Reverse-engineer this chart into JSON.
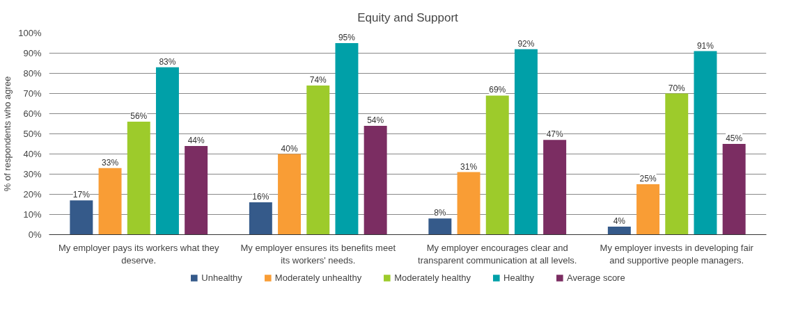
{
  "chart_data": {
    "type": "bar",
    "title": "Equity and Support",
    "ylabel": "% of respondents who agree",
    "categories": [
      "My employer pays its workers what they deserve.",
      "My employer ensures its benefits meet its workers' needs.",
      "My employer encourages clear and transparent communication at all levels.",
      "My employer invests in developing fair and supportive people managers."
    ],
    "series": [
      {
        "name": "Unhealthy",
        "color": "#355a8a",
        "values": [
          17,
          16,
          8,
          4
        ],
        "value_labels": [
          "17%",
          "16%",
          "8%",
          "4%"
        ]
      },
      {
        "name": "Moderately unhealthy",
        "color": "#f99d35",
        "values": [
          33,
          40,
          31,
          25
        ],
        "value_labels": [
          "33%",
          "40%",
          "31%",
          "25%"
        ]
      },
      {
        "name": "Moderately healthy",
        "color": "#9dcb2b",
        "values": [
          56,
          74,
          69,
          70
        ],
        "value_labels": [
          "56%",
          "74%",
          "69%",
          "70%"
        ]
      },
      {
        "name": "Healthy",
        "color": "#00a0a8",
        "values": [
          83,
          95,
          92,
          91
        ],
        "value_labels": [
          "83%",
          "95%",
          "92%",
          "91%"
        ]
      },
      {
        "name": "Average score",
        "color": "#7b2d62",
        "values": [
          44,
          54,
          47,
          45
        ],
        "value_labels": [
          "44%",
          "54%",
          "47%",
          "45%"
        ]
      }
    ],
    "ylim": [
      0,
      100
    ],
    "yticks": [
      {
        "value": 0,
        "label": "0%"
      },
      {
        "value": 10,
        "label": "10%"
      },
      {
        "value": 20,
        "label": "20%"
      },
      {
        "value": 30,
        "label": "30%"
      },
      {
        "value": 40,
        "label": "40%"
      },
      {
        "value": 50,
        "label": "50%"
      },
      {
        "value": 60,
        "label": "60%"
      },
      {
        "value": 70,
        "label": "70%"
      },
      {
        "value": 80,
        "label": "80%"
      },
      {
        "value": 90,
        "label": "90%"
      },
      {
        "value": 100,
        "label": "100%"
      }
    ],
    "grid": "y",
    "legend": "bottom"
  }
}
